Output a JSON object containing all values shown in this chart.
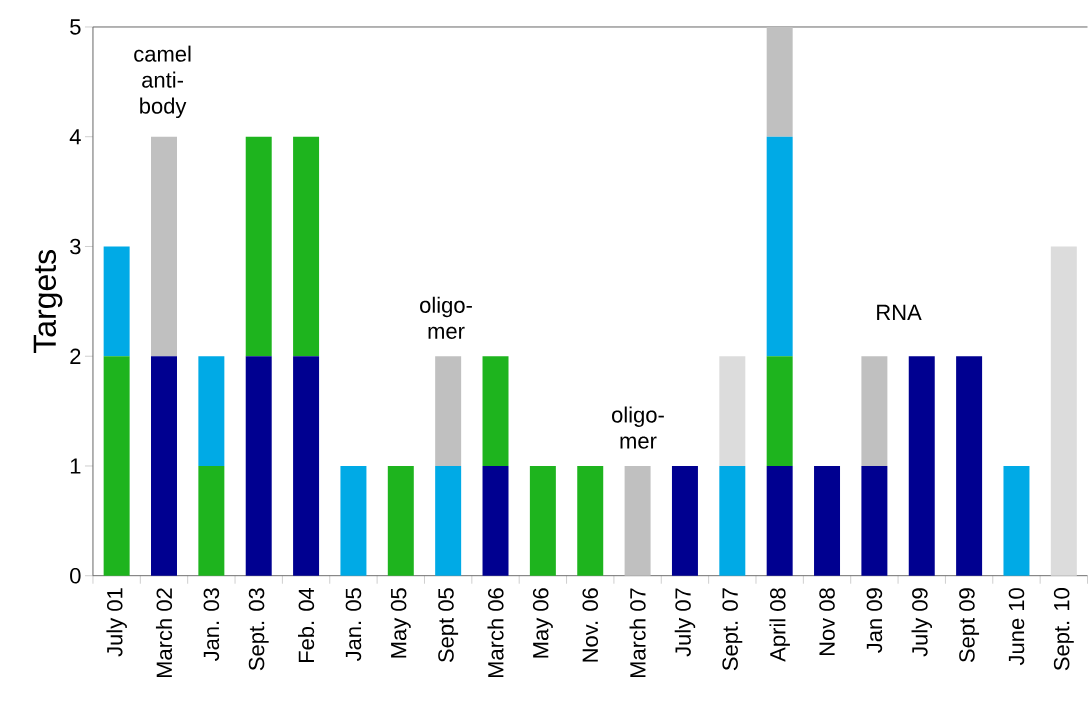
{
  "chart_data": {
    "type": "bar",
    "stacked": true,
    "ylabel": "Targets",
    "categories": [
      "July 01",
      "March 02",
      "Jan. 03",
      "Sept. 03",
      "Feb. 04",
      "Jan. 05",
      "May  05",
      "Sept 05",
      "March 06",
      "May  06",
      "Nov. 06",
      "March 07",
      "July 07",
      "Sept. 07",
      "April 08",
      "Nov 08",
      "Jan 09",
      "July 09",
      "Sept 09",
      "June 10",
      "Sept. 10"
    ],
    "series": [
      {
        "color": "#000090",
        "values": [
          0,
          2,
          0,
          2,
          2,
          0,
          0,
          0,
          1,
          0,
          0,
          0,
          1,
          0,
          1,
          1,
          1,
          2,
          2,
          0,
          0
        ]
      },
      {
        "color": "#1eb41e",
        "values": [
          2,
          0,
          1,
          2,
          2,
          0,
          1,
          0,
          1,
          1,
          1,
          0,
          0,
          0,
          1,
          0,
          0,
          0,
          0,
          0,
          0
        ]
      },
      {
        "color": "#00aae6",
        "values": [
          1,
          0,
          1,
          0,
          0,
          1,
          0,
          1,
          0,
          0,
          0,
          0,
          0,
          1,
          2,
          0,
          0,
          0,
          0,
          1,
          0
        ]
      },
      {
        "color": "#c0c0c0",
        "values": [
          0,
          2,
          0,
          0,
          0,
          0,
          0,
          1,
          0,
          0,
          0,
          1,
          0,
          0,
          1,
          0,
          1,
          0,
          0,
          0,
          0
        ]
      },
      {
        "color": "#dcdcdc",
        "values": [
          0,
          0,
          0,
          0,
          0,
          0,
          0,
          0,
          0,
          0,
          0,
          0,
          0,
          1,
          0,
          0,
          0,
          0,
          0,
          0,
          3
        ]
      }
    ],
    "ylim": [
      0,
      5
    ],
    "yticks": [
      0,
      1,
      2,
      3,
      4,
      5
    ],
    "grid": false,
    "annotations": [
      "camel anti-body",
      "oligo-mer",
      "oligo-mer",
      "RNA"
    ]
  }
}
